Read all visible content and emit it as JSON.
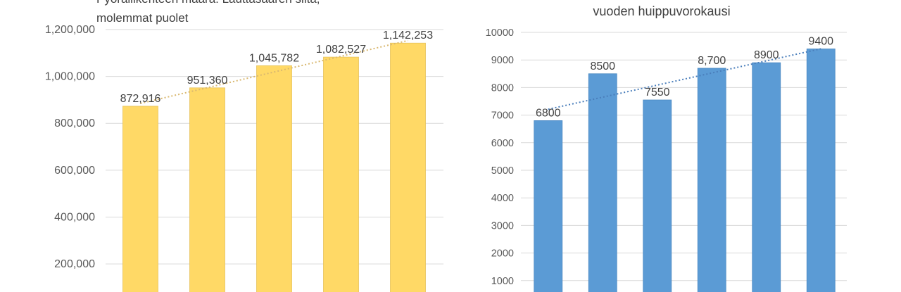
{
  "chart_data": [
    {
      "type": "bar",
      "title_lines": [
        "Pyöräliikenteen määrä: Lauttasaaren silta,",
        "molemmat puolet"
      ],
      "categories": [
        "",
        "",
        "",
        "",
        ""
      ],
      "values": [
        872916,
        951360,
        1045782,
        1082527,
        1142253
      ],
      "data_labels": [
        "872,916",
        "951,360",
        "1,045,782",
        "1,082,527",
        "1,142,253"
      ],
      "yticks": [
        "200,000",
        "400,000",
        "600,000",
        "800,000",
        "1,000,000",
        "1,200,000"
      ],
      "ytick_values": [
        200000,
        400000,
        600000,
        800000,
        1000000,
        1200000
      ],
      "ylim": [
        0,
        1200000
      ],
      "trendline": true,
      "grid": true,
      "colors": {
        "bar": "#FFD966",
        "bar_edge": "#E6C25A",
        "trend": "#D9B870"
      }
    },
    {
      "type": "bar",
      "title_lines": [
        "vuoden huippuvorokausi"
      ],
      "categories": [
        "",
        "",
        "",
        "",
        "",
        ""
      ],
      "values": [
        6800,
        8500,
        7550,
        8700,
        8900,
        9400
      ],
      "data_labels": [
        "6800",
        "8500",
        "7550",
        "8,700",
        "8900",
        "9400"
      ],
      "yticks": [
        "1000",
        "2000",
        "3000",
        "4000",
        "5000",
        "6000",
        "7000",
        "8000",
        "9000",
        "10000"
      ],
      "ytick_values": [
        1000,
        2000,
        3000,
        4000,
        5000,
        6000,
        7000,
        8000,
        9000,
        10000
      ],
      "ylim": [
        0,
        10000
      ],
      "trendline": true,
      "grid": true,
      "colors": {
        "bar": "#5B9BD5",
        "bar_edge": "#4A88C2",
        "trend": "#4A7EBB"
      }
    }
  ]
}
